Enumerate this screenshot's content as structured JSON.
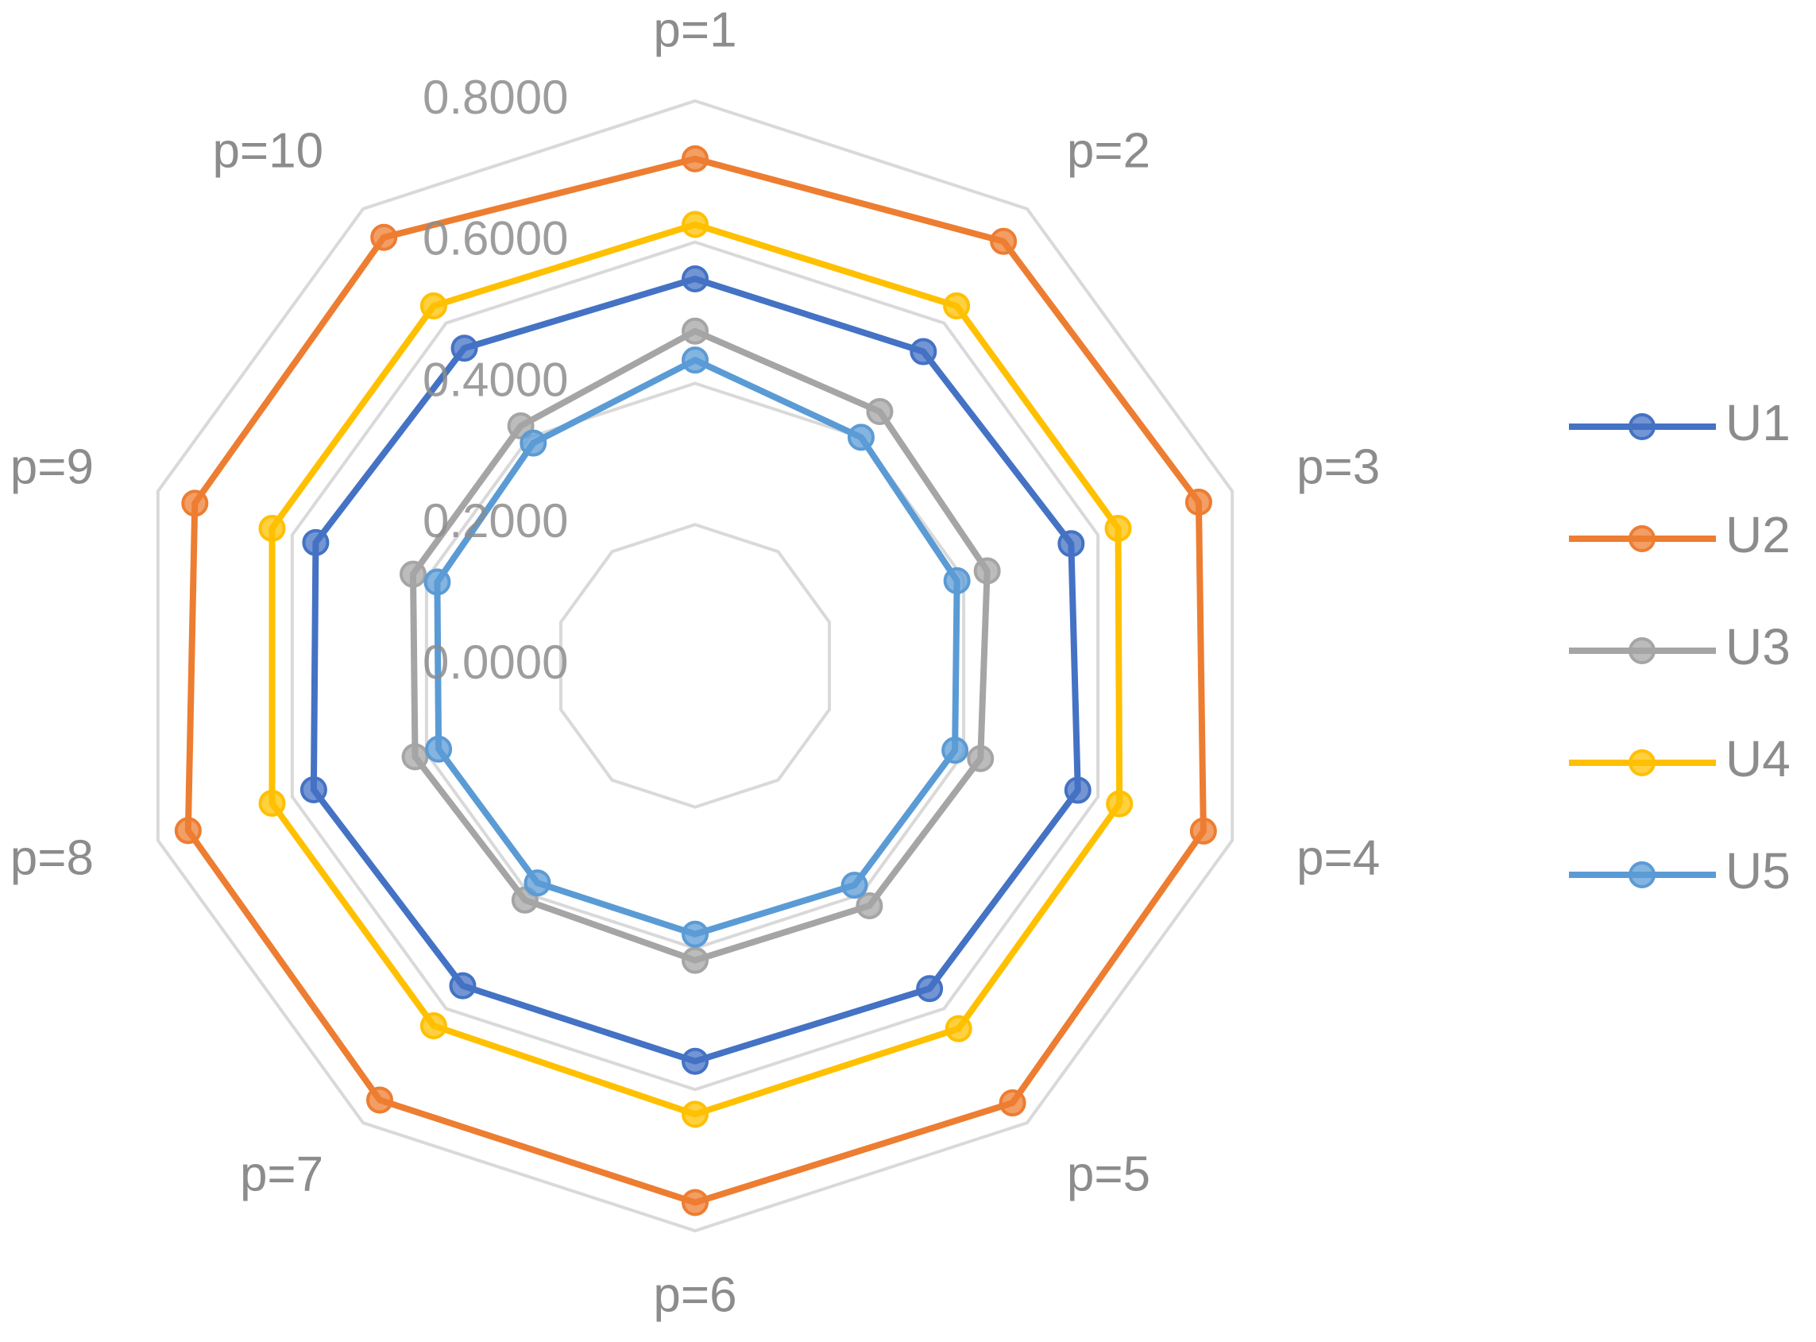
{
  "chart_data": {
    "type": "radar",
    "categories": [
      "p=1",
      "p=2",
      "p=3",
      "p=4",
      "p=5",
      "p=6",
      "p=7",
      "p=8",
      "p=9",
      "p=10"
    ],
    "series": [
      {
        "name": "U1",
        "color": "#4472c4",
        "values": [
          0.548,
          0.55,
          0.56,
          0.57,
          0.565,
          0.56,
          0.56,
          0.568,
          0.565,
          0.556
        ]
      },
      {
        "name": "U2",
        "color": "#ed7d31",
        "values": [
          0.718,
          0.743,
          0.75,
          0.757,
          0.765,
          0.76,
          0.76,
          0.755,
          0.745,
          0.75
        ]
      },
      {
        "name": "U3",
        "color": "#a5a5a5",
        "values": [
          0.474,
          0.445,
          0.435,
          0.425,
          0.42,
          0.417,
          0.41,
          0.417,
          0.42,
          0.42
        ]
      },
      {
        "name": "U4",
        "color": "#ffc000",
        "values": [
          0.625,
          0.63,
          0.63,
          0.632,
          0.635,
          0.635,
          0.63,
          0.63,
          0.63,
          0.63
        ]
      },
      {
        "name": "U5",
        "color": "#5b9bd5",
        "values": [
          0.433,
          0.4,
          0.39,
          0.387,
          0.384,
          0.38,
          0.38,
          0.382,
          0.384,
          0.39
        ]
      }
    ],
    "ylim": [
      0,
      0.8
    ],
    "yticks": [
      {
        "value": 0,
        "label": "0.0000"
      },
      {
        "value": 0.2,
        "label": "0.2000"
      },
      {
        "value": 0.4,
        "label": "0.4000"
      },
      {
        "value": 0.6,
        "label": "0.6000"
      },
      {
        "value": 0.8,
        "label": "0.8000"
      }
    ],
    "grid": true,
    "legend": "right"
  }
}
